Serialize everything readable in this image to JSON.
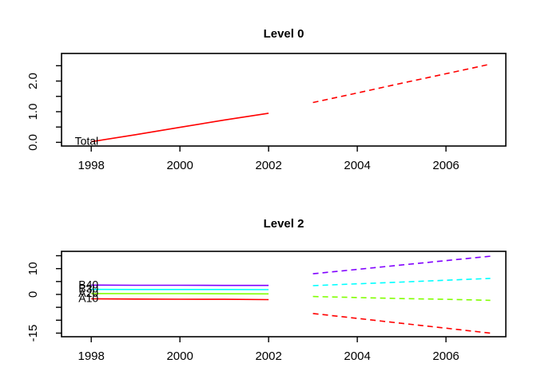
{
  "window": {
    "background": "#ffffff",
    "kind": "r-graphics-plot"
  },
  "chart_data": [
    {
      "type": "line",
      "title": "Level 0",
      "xlabel": "",
      "ylabel": "",
      "grid": false,
      "legend": "none",
      "xlim": [
        1997.33,
        2007.35
      ],
      "ylim": [
        -0.12,
        2.9
      ],
      "x_tick_values": [
        1998,
        2000,
        2002,
        2004,
        2006
      ],
      "x_tick_labels": [
        "1998",
        "2000",
        "2002",
        "2004",
        "2006"
      ],
      "y_tick_values": [
        2.5,
        2.0,
        1.5,
        1.0,
        0.5,
        0.0
      ],
      "y_tick_labels": [
        "",
        "2.0",
        "",
        "1.0",
        "",
        "0.0"
      ],
      "series": [
        {
          "name": "Total",
          "label": "Total",
          "color": "#FF0000",
          "history": {
            "style": "solid",
            "x": [
              1998,
              1999,
              2000,
              2001,
              2002
            ],
            "y": [
              0.02,
              0.25,
              0.49,
              0.73,
              0.95
            ]
          },
          "forecast": {
            "style": "dashed",
            "x": [
              2003,
              2004,
              2005,
              2006,
              2007
            ],
            "y": [
              1.3,
              1.61,
              1.93,
              2.24,
              2.55
            ]
          }
        }
      ]
    },
    {
      "type": "line",
      "title": "Level 2",
      "xlabel": "",
      "ylabel": "",
      "grid": false,
      "legend": "none",
      "xlim": [
        1997.33,
        2007.35
      ],
      "ylim": [
        -16.4,
        16.7
      ],
      "x_tick_values": [
        1998,
        2000,
        2002,
        2004,
        2006
      ],
      "x_tick_labels": [
        "1998",
        "2000",
        "2002",
        "2004",
        "2006"
      ],
      "y_tick_values": [
        15,
        10,
        5,
        0,
        -5,
        -10,
        -15
      ],
      "y_tick_labels": [
        "",
        "10",
        "",
        "0",
        "",
        "",
        "-15"
      ],
      "series": [
        {
          "name": "A10",
          "label": "A10",
          "color": "#FF0000",
          "history": {
            "style": "solid",
            "x": [
              1998,
              1999,
              2000,
              2001,
              2002
            ],
            "y": [
              -1.7,
              -1.8,
              -1.85,
              -1.9,
              -2.0
            ]
          },
          "forecast": {
            "style": "dashed",
            "x": [
              2003,
              2004,
              2005,
              2006,
              2007
            ],
            "y": [
              -7.4,
              -9.3,
              -11.2,
              -13.1,
              -15.0
            ]
          }
        },
        {
          "name": "A20",
          "label": "A20",
          "color": "#80FF00",
          "history": {
            "style": "solid",
            "x": [
              1998,
              1999,
              2000,
              2001,
              2002
            ],
            "y": [
              0.35,
              0.3,
              0.3,
              0.25,
              0.2
            ]
          },
          "forecast": {
            "style": "dashed",
            "x": [
              2003,
              2004,
              2005,
              2006,
              2007
            ],
            "y": [
              -0.8,
              -1.2,
              -1.6,
              -1.9,
              -2.3
            ]
          }
        },
        {
          "name": "B30",
          "label": "B30",
          "color": "#00FFFF",
          "history": {
            "style": "solid",
            "x": [
              1998,
              1999,
              2000,
              2001,
              2002
            ],
            "y": [
              1.95,
              1.9,
              1.9,
              1.9,
              1.85
            ]
          },
          "forecast": {
            "style": "dashed",
            "x": [
              2003,
              2004,
              2005,
              2006,
              2007
            ],
            "y": [
              3.4,
              4.1,
              4.8,
              5.5,
              6.2
            ]
          }
        },
        {
          "name": "B40",
          "label": "B40",
          "color": "#8000FF",
          "history": {
            "style": "solid",
            "x": [
              1998,
              1999,
              2000,
              2001,
              2002
            ],
            "y": [
              3.6,
              3.55,
              3.55,
              3.5,
              3.5
            ]
          },
          "forecast": {
            "style": "dashed",
            "x": [
              2003,
              2004,
              2005,
              2006,
              2007
            ],
            "y": [
              8.0,
              9.7,
              11.4,
              13.1,
              14.8
            ]
          }
        }
      ]
    }
  ]
}
